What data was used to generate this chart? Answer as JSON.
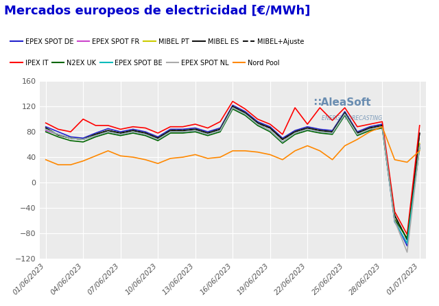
{
  "title": "Mercados europeos de electricidad [€/MWh]",
  "title_color": "#0000cc",
  "background_color": "#ffffff",
  "plot_bg_color": "#ebebeb",
  "ylim": [
    -120,
    160
  ],
  "yticks": [
    -120,
    -80,
    -40,
    0,
    40,
    80,
    120,
    160
  ],
  "xtick_labels": [
    "01/06/2023",
    "04/06/2023",
    "07/06/2023",
    "10/06/2023",
    "13/06/2023",
    "16/06/2023",
    "19/06/2023",
    "22/06/2023",
    "25/06/2023",
    "28/06/2023",
    "01/07/2023"
  ],
  "xtick_positions": [
    0,
    3,
    6,
    9,
    12,
    15,
    18,
    21,
    24,
    27,
    30
  ],
  "series": [
    {
      "name": "EPEX SPOT DE",
      "color": "#2222cc",
      "linestyle": "-",
      "values": [
        88,
        80,
        72,
        70,
        78,
        85,
        80,
        84,
        80,
        72,
        84,
        84,
        86,
        80,
        86,
        122,
        112,
        96,
        88,
        70,
        82,
        88,
        84,
        82,
        112,
        80,
        88,
        92,
        -60,
        -100,
        60
      ]
    },
    {
      "name": "EPEX SPOT FR",
      "color": "#cc44cc",
      "linestyle": "-",
      "values": [
        82,
        76,
        70,
        68,
        74,
        80,
        76,
        80,
        76,
        68,
        80,
        80,
        82,
        76,
        82,
        118,
        108,
        92,
        82,
        64,
        78,
        84,
        80,
        78,
        108,
        76,
        84,
        88,
        -62,
        -96,
        56
      ]
    },
    {
      "name": "MIBEL PT",
      "color": "#cccc00",
      "linestyle": "-",
      "values": [
        86,
        75,
        70,
        68,
        76,
        82,
        78,
        82,
        78,
        70,
        82,
        82,
        84,
        78,
        84,
        120,
        110,
        94,
        86,
        68,
        80,
        86,
        82,
        80,
        110,
        78,
        86,
        90,
        -52,
        -90,
        62
      ]
    },
    {
      "name": "MIBEL ES",
      "color": "#111111",
      "linestyle": "-",
      "values": [
        86,
        75,
        70,
        68,
        76,
        82,
        78,
        82,
        78,
        70,
        82,
        82,
        84,
        78,
        84,
        120,
        110,
        94,
        86,
        68,
        80,
        86,
        82,
        80,
        110,
        78,
        86,
        90,
        -52,
        -90,
        78
      ]
    },
    {
      "name": "MIBEL+Ajuste",
      "color": "#111111",
      "linestyle": "--",
      "values": [
        86,
        75,
        70,
        68,
        76,
        82,
        78,
        82,
        78,
        70,
        82,
        82,
        84,
        78,
        84,
        120,
        110,
        94,
        86,
        68,
        80,
        86,
        82,
        80,
        110,
        78,
        86,
        90,
        -52,
        -90,
        78
      ]
    },
    {
      "name": "IPEX IT",
      "color": "#ff0000",
      "linestyle": "-",
      "values": [
        94,
        84,
        80,
        100,
        90,
        90,
        84,
        88,
        86,
        78,
        88,
        88,
        92,
        86,
        96,
        128,
        116,
        100,
        92,
        76,
        118,
        92,
        118,
        98,
        118,
        88,
        92,
        96,
        -46,
        -82,
        90
      ]
    },
    {
      "name": "N2EX UK",
      "color": "#006600",
      "linestyle": "-",
      "values": [
        80,
        72,
        66,
        64,
        72,
        78,
        74,
        78,
        74,
        66,
        78,
        78,
        80,
        74,
        80,
        116,
        106,
        90,
        80,
        62,
        76,
        82,
        78,
        76,
        106,
        74,
        82,
        86,
        -58,
        -88,
        54
      ]
    },
    {
      "name": "EPEX SPOT BE",
      "color": "#00bbbb",
      "linestyle": "-",
      "values": [
        84,
        76,
        70,
        68,
        74,
        80,
        76,
        80,
        76,
        68,
        80,
        80,
        82,
        76,
        82,
        118,
        108,
        92,
        82,
        64,
        78,
        84,
        80,
        78,
        108,
        76,
        84,
        88,
        -62,
        -96,
        56
      ]
    },
    {
      "name": "EPEX SPOT NL",
      "color": "#aaaaaa",
      "linestyle": "-",
      "values": [
        84,
        76,
        70,
        68,
        74,
        80,
        76,
        80,
        76,
        68,
        80,
        80,
        82,
        76,
        82,
        118,
        108,
        92,
        82,
        64,
        78,
        84,
        80,
        78,
        108,
        76,
        84,
        88,
        -60,
        -110,
        56
      ]
    },
    {
      "name": "Nord Pool",
      "color": "#ff8800",
      "linestyle": "-",
      "values": [
        36,
        28,
        28,
        34,
        42,
        50,
        42,
        40,
        36,
        30,
        38,
        40,
        44,
        38,
        40,
        50,
        50,
        48,
        44,
        36,
        50,
        58,
        50,
        36,
        58,
        68,
        80,
        88,
        36,
        32,
        50
      ]
    }
  ],
  "legend_row1": [
    {
      "name": "EPEX SPOT DE",
      "color": "#2222cc",
      "linestyle": "-"
    },
    {
      "name": "EPEX SPOT FR",
      "color": "#cc44cc",
      "linestyle": "-"
    },
    {
      "name": "MIBEL PT",
      "color": "#cccc00",
      "linestyle": "-"
    },
    {
      "name": "MIBEL ES",
      "color": "#111111",
      "linestyle": "-"
    },
    {
      "name": "MIBEL+Ajuste",
      "color": "#111111",
      "linestyle": "--"
    }
  ],
  "legend_row2": [
    {
      "name": "IPEX IT",
      "color": "#ff0000",
      "linestyle": "-"
    },
    {
      "name": "N2EX UK",
      "color": "#006600",
      "linestyle": "-"
    },
    {
      "name": "EPEX SPOT BE",
      "color": "#00bbbb",
      "linestyle": "-"
    },
    {
      "name": "EPEX SPOT NL",
      "color": "#aaaaaa",
      "linestyle": "-"
    },
    {
      "name": "Nord Pool",
      "color": "#ff8800",
      "linestyle": "-"
    }
  ]
}
